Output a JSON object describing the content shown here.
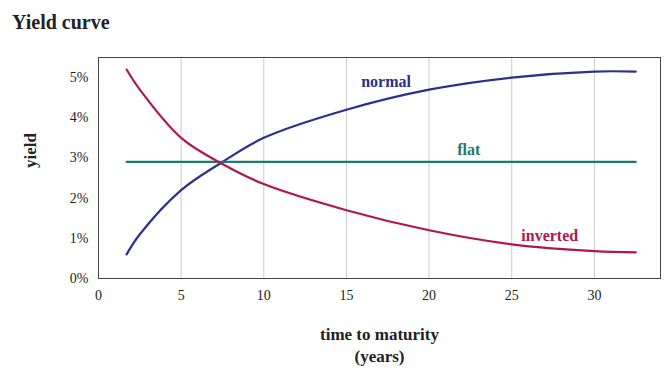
{
  "chart_data": {
    "type": "line",
    "title": "Yield curve",
    "x_label": "time to maturity\n(years)",
    "y_label": "yield",
    "x": [
      1.7,
      2.5,
      5,
      7.5,
      10,
      15,
      20,
      25,
      30,
      32.5
    ],
    "series": [
      {
        "name": "normal",
        "color": "#2b2f8f",
        "values": [
          0.6,
          1.1,
          2.2,
          2.9,
          3.5,
          4.2,
          4.7,
          5.0,
          5.15,
          5.15
        ]
      },
      {
        "name": "flat",
        "color": "#1f7a6e",
        "values": [
          2.9,
          2.9,
          2.9,
          2.9,
          2.9,
          2.9,
          2.9,
          2.9,
          2.9,
          2.9
        ]
      },
      {
        "name": "inverted",
        "color": "#b0174a",
        "values": [
          5.2,
          4.7,
          3.5,
          2.85,
          2.35,
          1.7,
          1.2,
          0.85,
          0.68,
          0.65
        ]
      }
    ],
    "annotations": [
      {
        "text": "normal",
        "x": 17.4,
        "y": 4.9
      },
      {
        "text": "flat",
        "x": 22.4,
        "y": 3.2
      },
      {
        "text": "inverted",
        "x": 27.3,
        "y": 1.05
      }
    ],
    "xlim": [
      0,
      34
    ],
    "xticks": [
      0,
      5,
      10,
      15,
      20,
      25,
      30
    ],
    "ylim": [
      0,
      5.5
    ],
    "yticks": [
      {
        "value": 0,
        "label": "0%"
      },
      {
        "value": 1,
        "label": "1%"
      },
      {
        "value": 2,
        "label": "2%"
      },
      {
        "value": 3,
        "label": "3%"
      },
      {
        "value": 4,
        "label": "4%"
      },
      {
        "value": 5,
        "label": "5%"
      }
    ],
    "grid": true
  }
}
